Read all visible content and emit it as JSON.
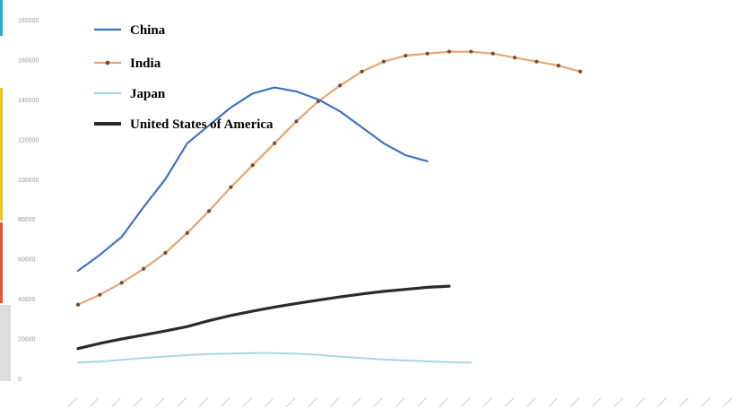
{
  "colors": {
    "background": "#ffffff",
    "tick_text": "#9a9a9a",
    "edge_strip": [
      "#2aa6d6",
      "#f0c419",
      "#e4572e",
      "#dddddd"
    ]
  },
  "chart_data": {
    "type": "line",
    "title": "",
    "xlabel": "",
    "ylabel": "",
    "x_tick_count": 31,
    "ylim": [
      0,
      180000
    ],
    "yticks": [
      0,
      20000,
      40000,
      60000,
      80000,
      100000,
      120000,
      140000,
      160000,
      180000
    ],
    "ytick_labels": [
      "0",
      "20000",
      "40000",
      "60000",
      "80000",
      "100000",
      "120000",
      "140000",
      "160000",
      "180000"
    ],
    "grid": false,
    "legend_position": "top-left",
    "series": [
      {
        "name": "China",
        "color": "#3f72c4",
        "marker": "none",
        "values": [
          54000,
          62000,
          71000,
          86000,
          100000,
          118000,
          127000,
          136000,
          143000,
          146000,
          144000,
          140000,
          134000,
          126000,
          118000,
          112000,
          109000
        ]
      },
      {
        "name": "India",
        "color": "#e8a472",
        "marker": "dot",
        "values": [
          37000,
          42000,
          48000,
          55000,
          63000,
          73000,
          84000,
          96000,
          107000,
          118000,
          129000,
          139000,
          147000,
          154000,
          159000,
          162000,
          163000,
          164000,
          164000,
          163000,
          161000,
          159000,
          157000,
          154000
        ]
      },
      {
        "name": "Japan",
        "color": "#a9d5ea",
        "marker": "none",
        "values": [
          8000,
          8500,
          9300,
          10200,
          11000,
          11700,
          12200,
          12500,
          12700,
          12700,
          12400,
          11800,
          11000,
          10200,
          9500,
          9000,
          8600,
          8200,
          7900
        ]
      },
      {
        "name": "United States of  America",
        "color": "#2b2b2b",
        "marker": "none",
        "values": [
          15000,
          17600,
          19800,
          21800,
          23800,
          26000,
          29000,
          31600,
          33800,
          35800,
          37600,
          39300,
          40900,
          42400,
          43700,
          44700,
          45700,
          46300
        ]
      }
    ]
  }
}
